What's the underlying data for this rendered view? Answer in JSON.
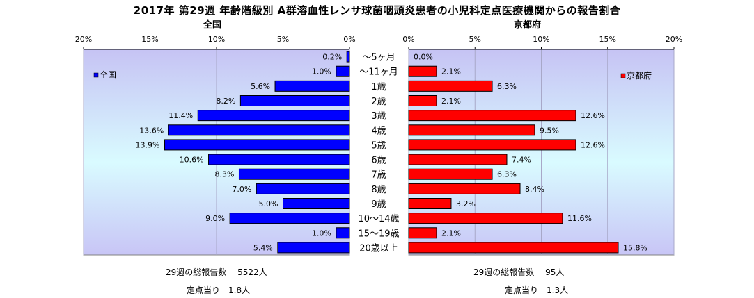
{
  "title": "2017年 第29週 年齢階級別 A群溶血性レンサ球菌咽頭炎患者の小児科定点医療機関からの報告割合",
  "chart_data": [
    {
      "type": "bar",
      "title": "全国",
      "orientation": "horizontal",
      "direction": "right-to-left",
      "categories": [
        "~5ヶ月",
        "~11ヶ月",
        "1歳",
        "2歳",
        "3歳",
        "4歳",
        "5歳",
        "6歳",
        "7歳",
        "8歳",
        "9歳",
        "10~14歳",
        "15~19歳",
        "20歳以上"
      ],
      "series": [
        {
          "name": "全国",
          "color": "#0000ff",
          "values": [
            0.2,
            1.0,
            5.6,
            8.2,
            11.4,
            13.6,
            13.9,
            10.6,
            8.3,
            7.0,
            5.0,
            9.0,
            1.0,
            5.4
          ],
          "labels": [
            "0.2%",
            "1.0%",
            "5.6%",
            "8.2%",
            "11.4%",
            "13.6%",
            "13.9%",
            "10.6%",
            "8.3%",
            "7.0%",
            "5.0%",
            "9.0%",
            "1.0%",
            "5.4%"
          ]
        }
      ],
      "xlim": [
        0,
        20
      ],
      "ticks": [
        "0%",
        "5%",
        "10%",
        "15%",
        "20%"
      ],
      "grid": true,
      "legend": "top-left"
    },
    {
      "type": "bar",
      "title": "京都府",
      "orientation": "horizontal",
      "direction": "left-to-right",
      "categories": [
        "~5ヶ月",
        "~11ヶ月",
        "1歳",
        "2歳",
        "3歳",
        "4歳",
        "5歳",
        "6歳",
        "7歳",
        "8歳",
        "9歳",
        "10~14歳",
        "15~19歳",
        "20歳以上"
      ],
      "series": [
        {
          "name": "京都府",
          "color": "#ff0000",
          "values": [
            0.0,
            2.1,
            6.3,
            2.1,
            12.6,
            9.5,
            12.6,
            7.4,
            6.3,
            8.4,
            3.2,
            11.6,
            2.1,
            15.8
          ],
          "labels": [
            "0.0%",
            "2.1%",
            "6.3%",
            "2.1%",
            "12.6%",
            "9.5%",
            "12.6%",
            "7.4%",
            "6.3%",
            "8.4%",
            "3.2%",
            "11.6%",
            "2.1%",
            "15.8%"
          ]
        }
      ],
      "xlim": [
        0,
        20
      ],
      "ticks": [
        "0%",
        "5%",
        "10%",
        "15%",
        "20%"
      ],
      "grid": true,
      "legend": "top-right"
    }
  ],
  "category_labels": [
    "～5ヶ月",
    "～11ヶ月",
    "1歳",
    "2歳",
    "3歳",
    "4歳",
    "5歳",
    "6歳",
    "7歳",
    "8歳",
    "9歳",
    "10～14歳",
    "15～19歳",
    "20歳以上"
  ],
  "footer": {
    "left_total": "29週の総報告数　 5522人",
    "left_per": "定点当り　1.8人",
    "right_total": "29週の総報告数　 95人",
    "right_per": "定点当り　1.3人"
  }
}
